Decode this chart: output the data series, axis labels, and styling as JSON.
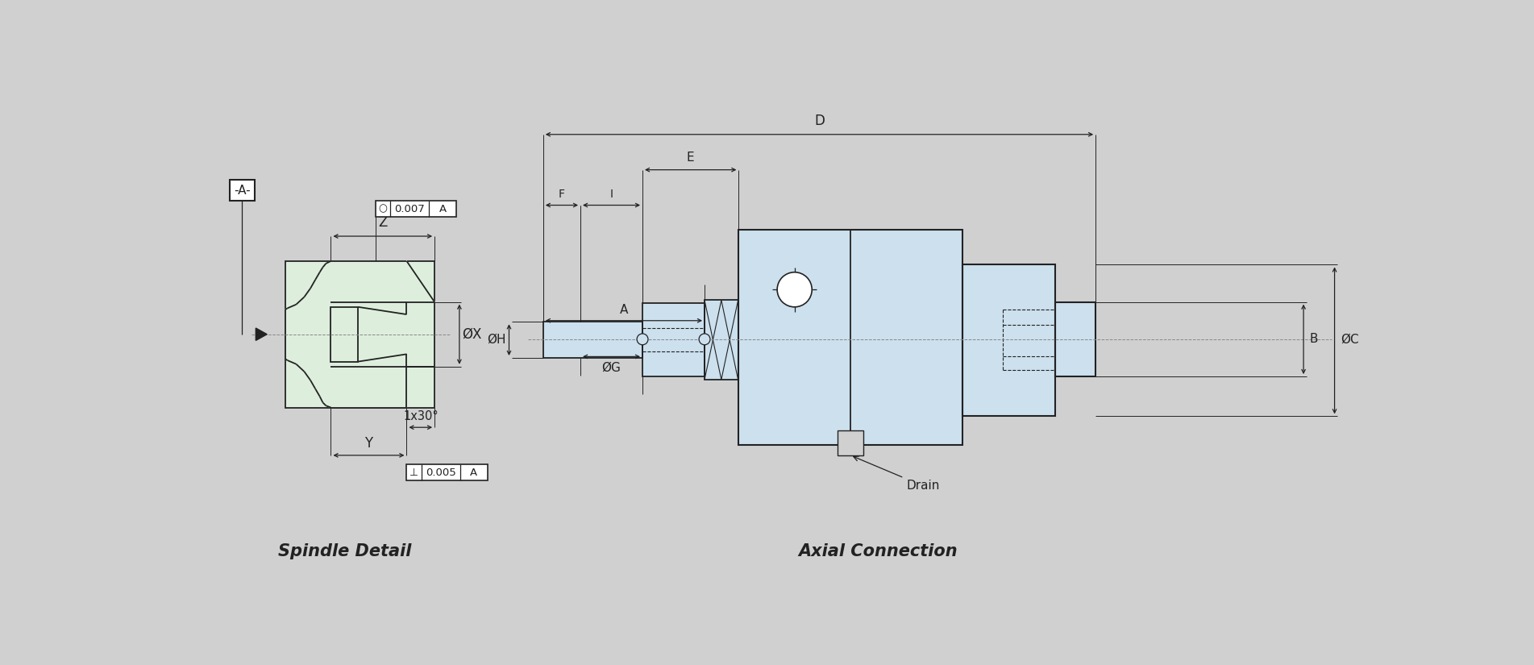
{
  "bg_color": "#d0d0d0",
  "spindle_fill": "#ddeedd",
  "axial_fill": "#cce0ee",
  "line_color": "#222222",
  "title1": "Spindle Detail",
  "title2": "Axial Connection",
  "label_Z": "Z",
  "label_Y": "Y",
  "label_X": "ØX",
  "label_A_ref": "-A-",
  "label_1x30": "1x30°",
  "label_D": "D",
  "label_E": "E",
  "label_F": "F",
  "label_I": "I",
  "label_H": "ØH",
  "label_G": "ØG",
  "label_C": "ØC",
  "label_A2": "A",
  "label_B": "B",
  "label_drain": "Drain",
  "tol1_sym": "○",
  "tol1_val": "0.007",
  "tol2_sym": "⊥",
  "tol2_val": "0.005"
}
